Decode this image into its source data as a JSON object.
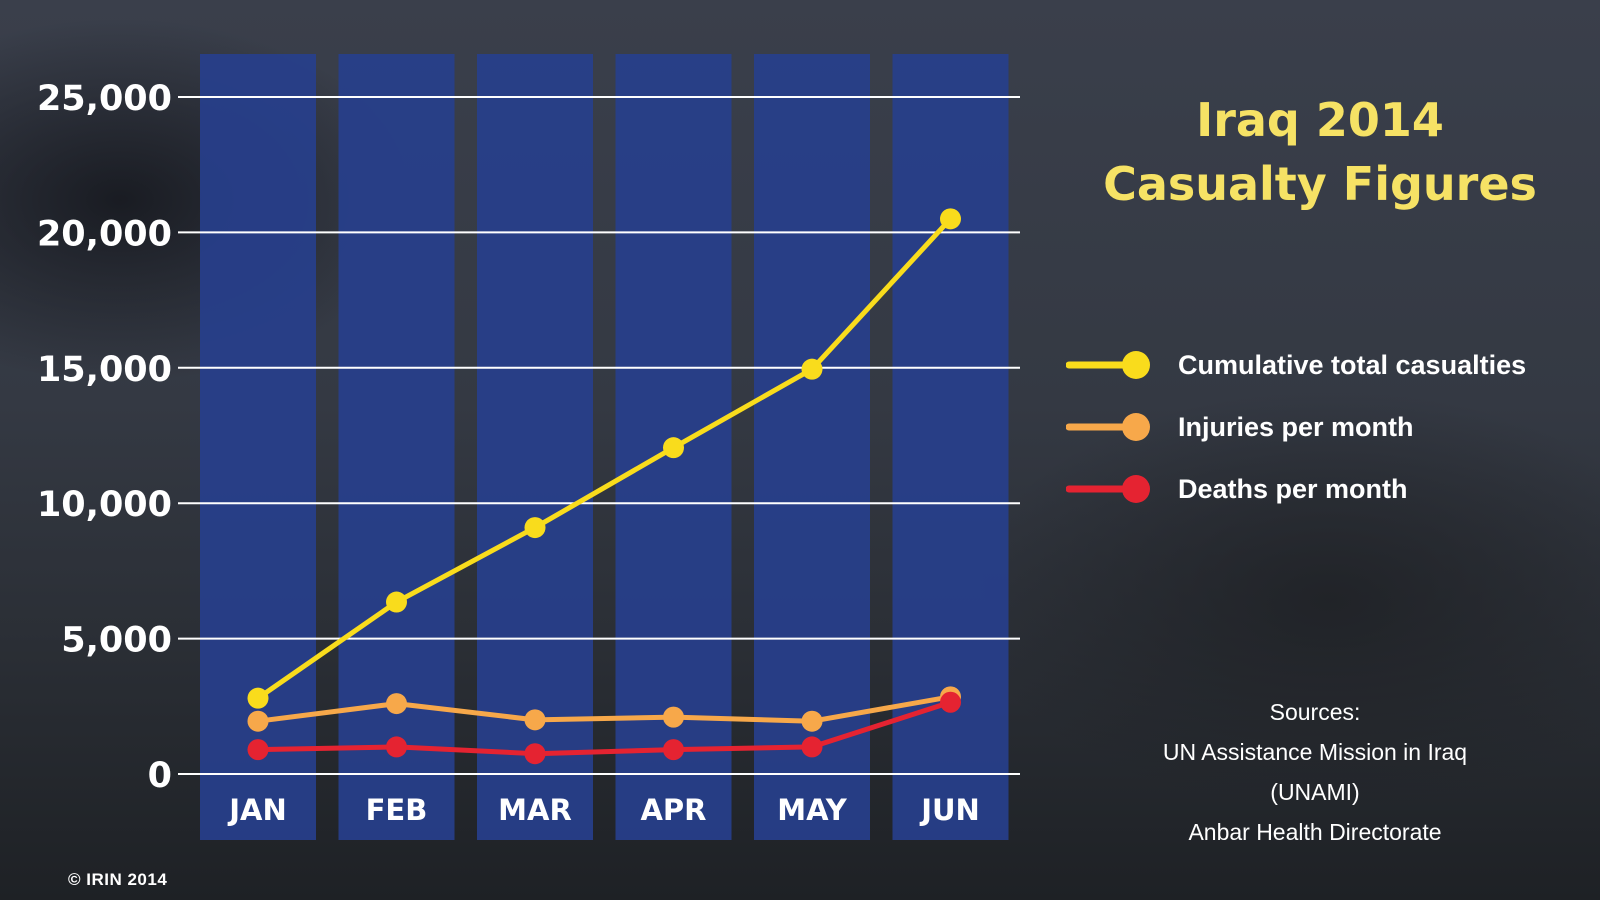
{
  "chart_data": {
    "type": "line",
    "title": "Iraq 2014",
    "subtitle": "Casualty Figures",
    "categories": [
      "JAN",
      "FEB",
      "MAR",
      "APR",
      "MAY",
      "JUN"
    ],
    "ylim": [
      0,
      25000
    ],
    "yticks": [
      0,
      5000,
      10000,
      15000,
      20000,
      25000
    ],
    "ytick_labels": [
      "0",
      "5,000",
      "10,000",
      "15,000",
      "20,000",
      "25,000"
    ],
    "grid": true,
    "legend_position": "right",
    "series": [
      {
        "name": "Cumulative total casualties",
        "color": "#f9dc1c",
        "values": [
          2800,
          6350,
          9100,
          12050,
          14950,
          20500
        ]
      },
      {
        "name": "Injuries per month",
        "color": "#f7a84a",
        "values": [
          1950,
          2600,
          2000,
          2100,
          1950,
          2850
        ]
      },
      {
        "name": "Deaths per month",
        "color": "#e52331",
        "values": [
          900,
          1000,
          750,
          900,
          1000,
          2650
        ]
      }
    ]
  },
  "colors": {
    "month_column": "#273f8c",
    "gridline": "#ffffff",
    "title_text": "#f6e265"
  },
  "sources": {
    "heading": "Sources:",
    "line1": "UN Assistance Mission in Iraq",
    "line2": "(UNAMI)",
    "line3": "Anbar Health Directorate"
  },
  "credit": "© IRIN 2014"
}
